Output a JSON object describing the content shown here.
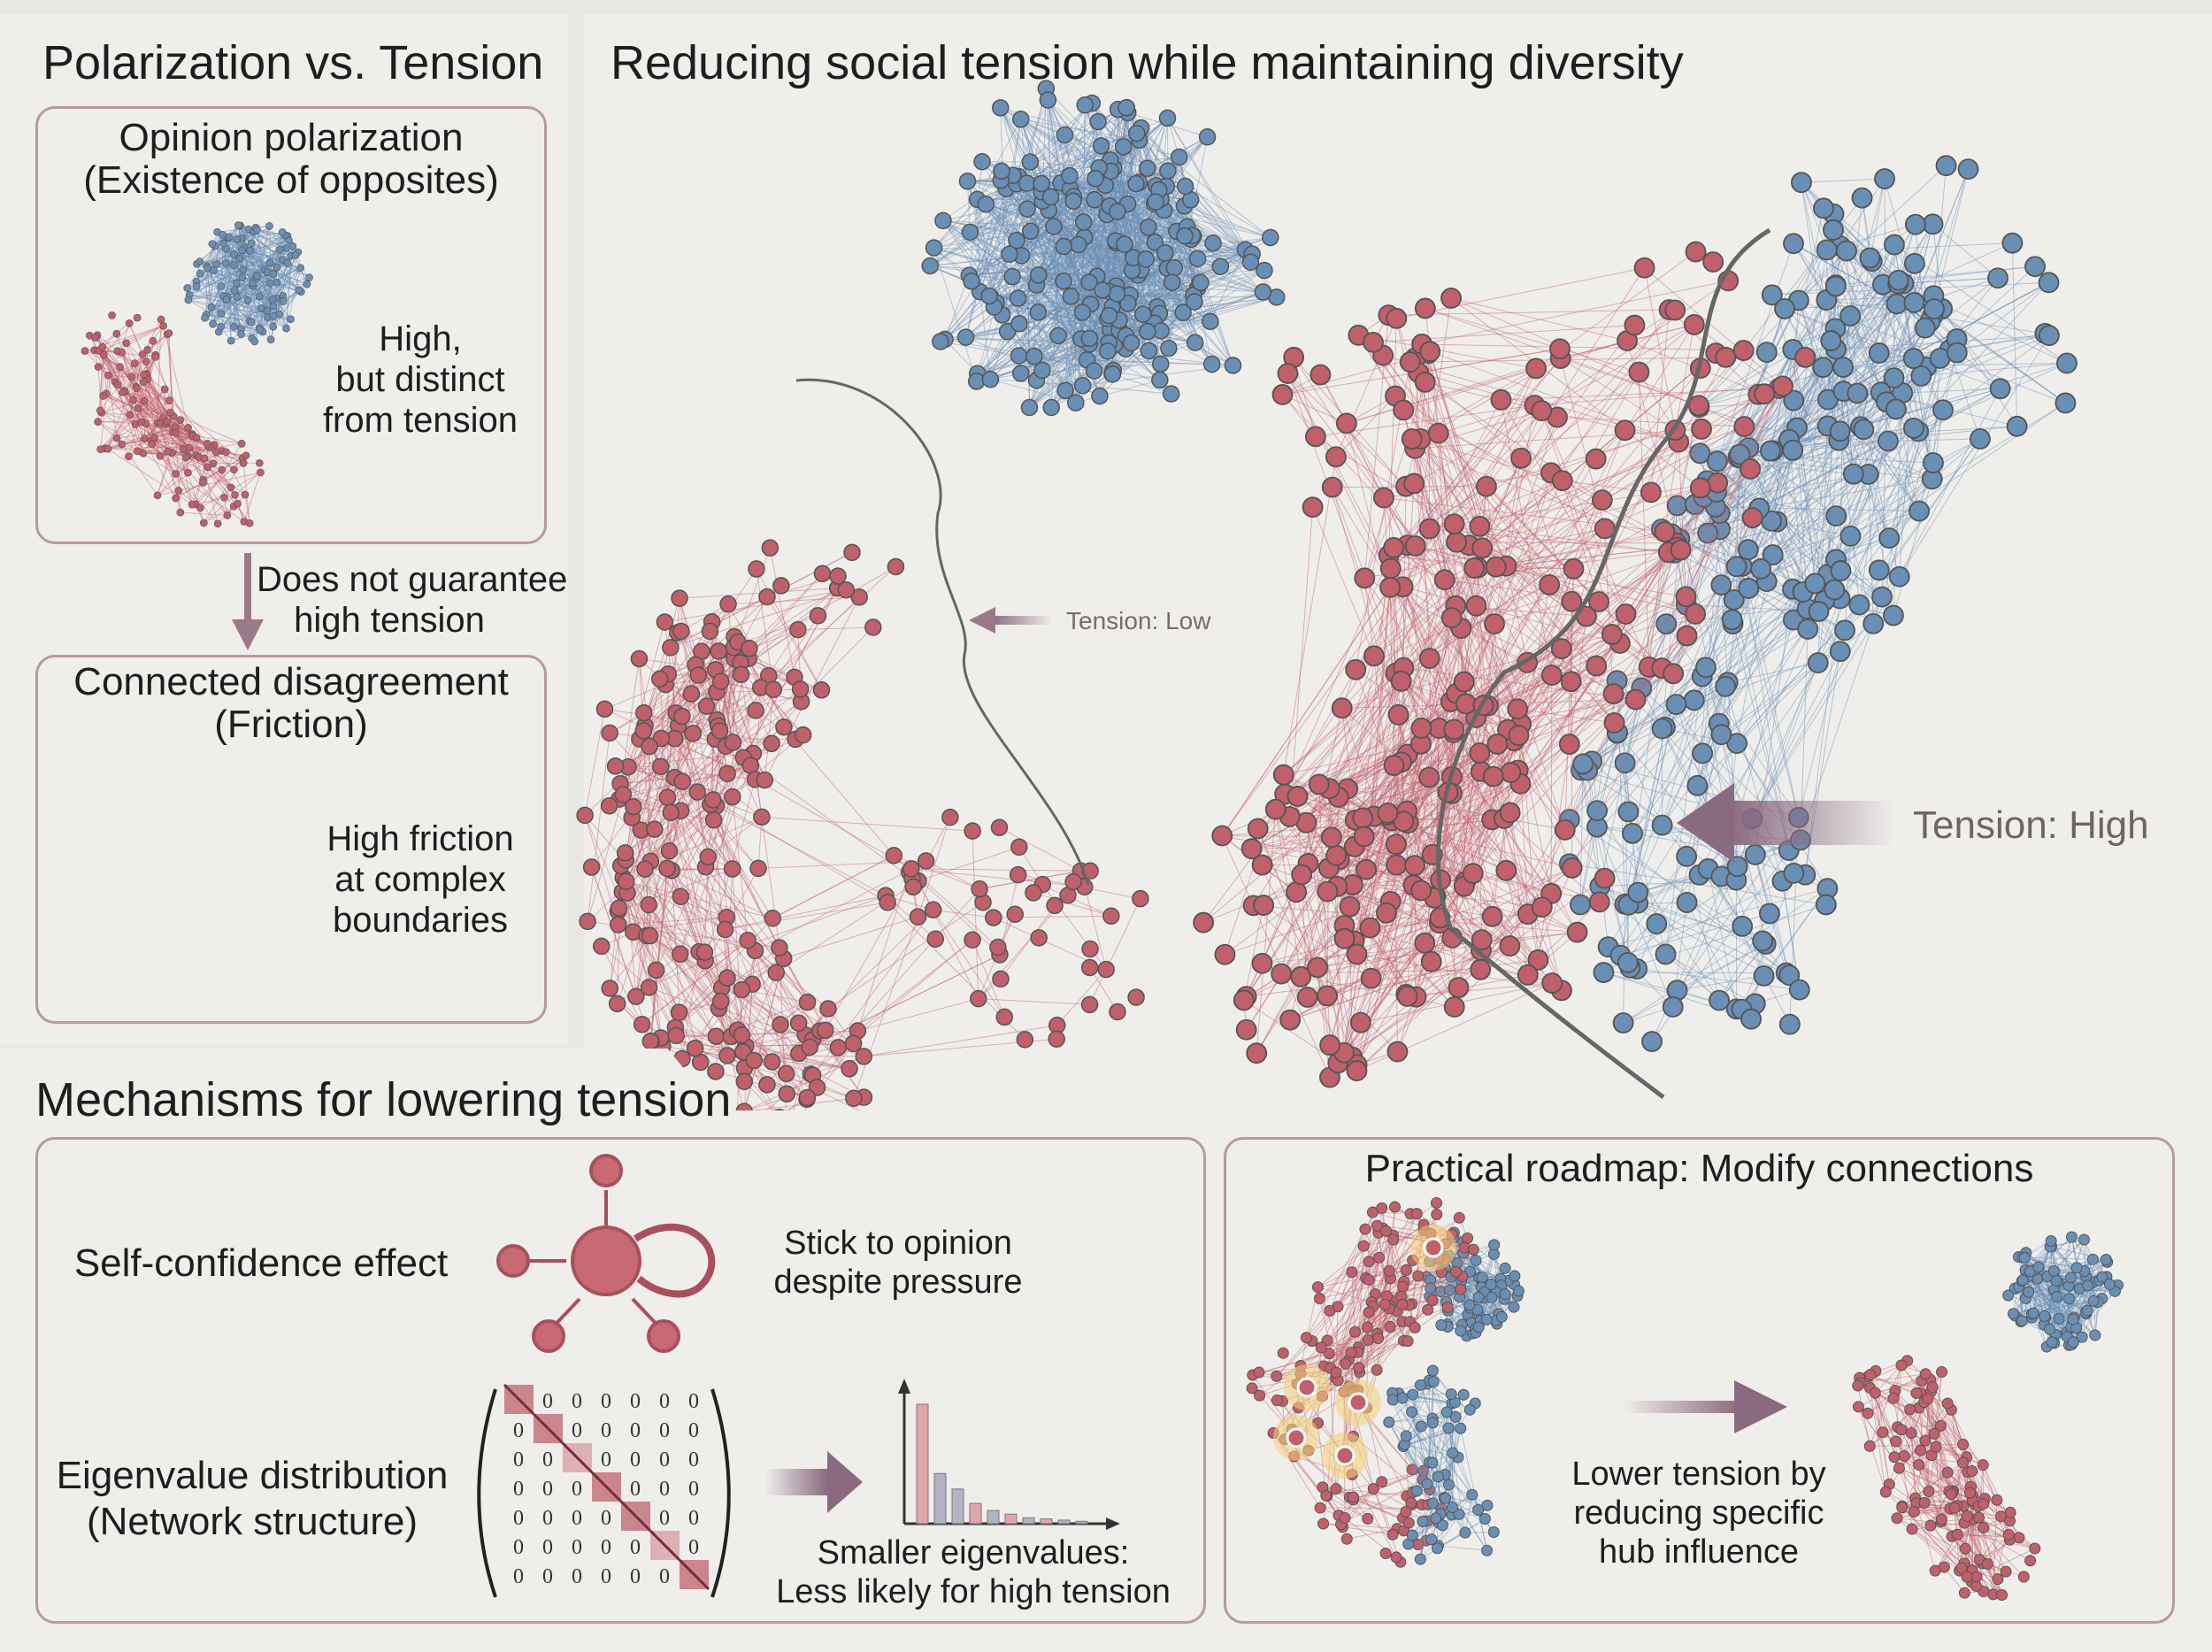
{
  "left_panel": {
    "title": "Polarization vs. Tension",
    "box1": {
      "title_line1": "Opinion polarization",
      "title_line2": "(Existence of opposites)",
      "note_line1": "High,",
      "note_line2": "but distinct",
      "note_line3": "from tension"
    },
    "arrow_label_line1": "Does not guarantee",
    "arrow_label_line2": "high tension",
    "box2": {
      "title_line1": "Connected disagreement",
      "title_line2": "(Friction)",
      "note_line1": "High friction",
      "note_line2": "at complex",
      "note_line3": "boundaries"
    }
  },
  "main_panel": {
    "title": "Reducing social tension while maintaining diversity",
    "low_label": "Tension: Low",
    "high_label": "Tension: High"
  },
  "mechanisms": {
    "title": "Mechanisms for lowering tension",
    "self_confidence_label": "Self-confidence effect",
    "self_confidence_note_line1": "Stick to opinion",
    "self_confidence_note_line2": "despite pressure",
    "eigen_label_line1": "Eigenvalue distribution",
    "eigen_label_line2": "(Network structure)",
    "matrix_zero": "0",
    "eigen_note_line1": "Smaller eigenvalues:",
    "eigen_note_line2": "Less likely for high tension",
    "eigen_bars": [
      1.0,
      0.42,
      0.29,
      0.17,
      0.11,
      0.08,
      0.05,
      0.04,
      0.03,
      0.02
    ]
  },
  "roadmap": {
    "title": "Practical roadmap: Modify connections",
    "note_line1": "Lower tension by",
    "note_line2": "reducing specific",
    "note_line3": "hub influence"
  },
  "colors": {
    "red": "#c0606b",
    "blue": "#6a8fb5",
    "border": "#b79a9e",
    "arrow": "#8a6a80"
  }
}
